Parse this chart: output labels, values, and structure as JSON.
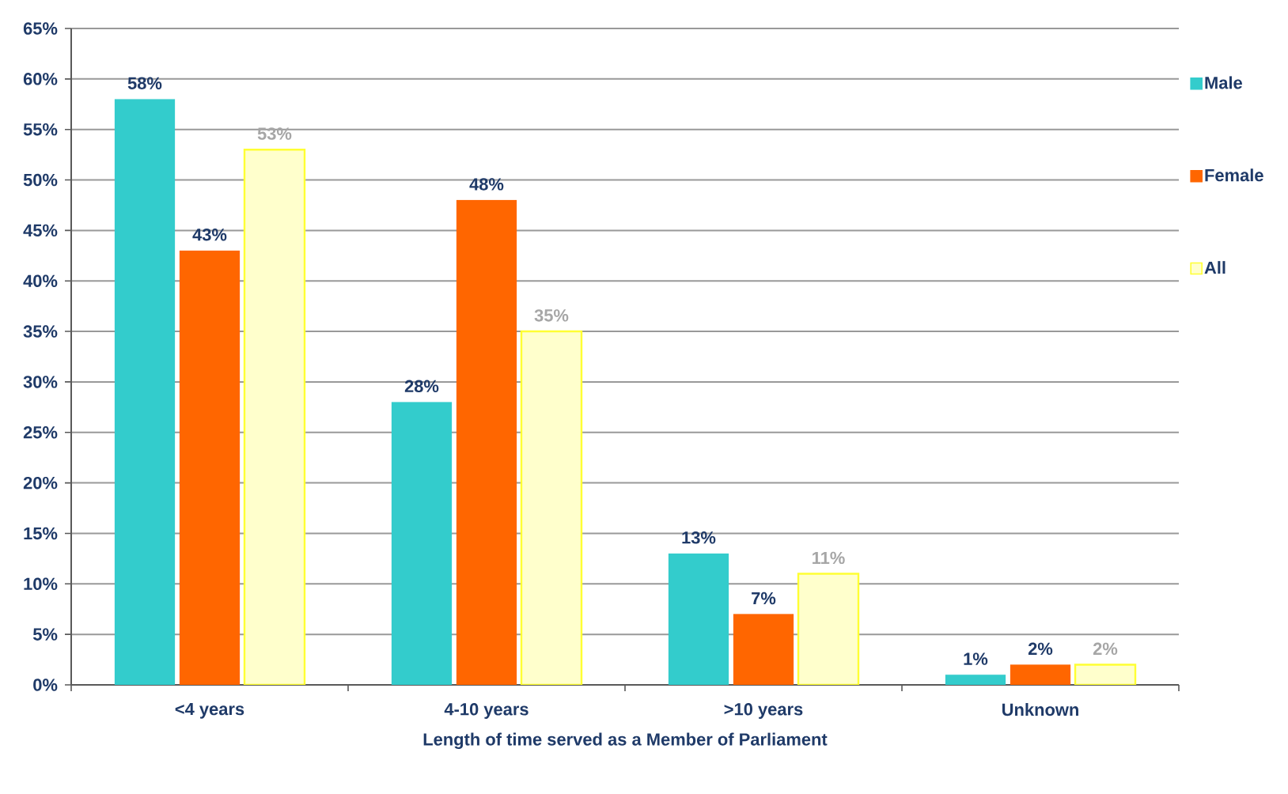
{
  "chart_data": {
    "type": "bar",
    "xlabel": "Length of time served as a Member of Parliament",
    "categories": [
      "<4 years",
      "4-10 years",
      ">10 years",
      "Unknown"
    ],
    "series": [
      {
        "name": "Male",
        "color": "#33cccc",
        "values": [
          58,
          28,
          13,
          1
        ],
        "value_labels": [
          "58%",
          "28%",
          "13%",
          "1%"
        ]
      },
      {
        "name": "Female",
        "color": "#ff6600",
        "values": [
          43,
          48,
          7,
          2
        ],
        "value_labels": [
          "43%",
          "48%",
          "7%",
          "2%"
        ]
      },
      {
        "name": "All",
        "color": "#ffffcc",
        "values": [
          53,
          35,
          11,
          2
        ],
        "value_labels": [
          "53%",
          "35%",
          "11%",
          "2%"
        ]
      }
    ],
    "ylim": [
      0,
      65
    ],
    "yticks": [
      {
        "value": 0,
        "label": "0%"
      },
      {
        "value": 5,
        "label": "5%"
      },
      {
        "value": 10,
        "label": "10%"
      },
      {
        "value": 15,
        "label": "15%"
      },
      {
        "value": 20,
        "label": "20%"
      },
      {
        "value": 25,
        "label": "25%"
      },
      {
        "value": 30,
        "label": "30%"
      },
      {
        "value": 35,
        "label": "35%"
      },
      {
        "value": 40,
        "label": "40%"
      },
      {
        "value": 45,
        "label": "45%"
      },
      {
        "value": 50,
        "label": "50%"
      },
      {
        "value": 55,
        "label": "55%"
      },
      {
        "value": 60,
        "label": "60%"
      },
      {
        "value": 65,
        "label": "65%"
      }
    ],
    "grid": "y",
    "legend": "right"
  }
}
